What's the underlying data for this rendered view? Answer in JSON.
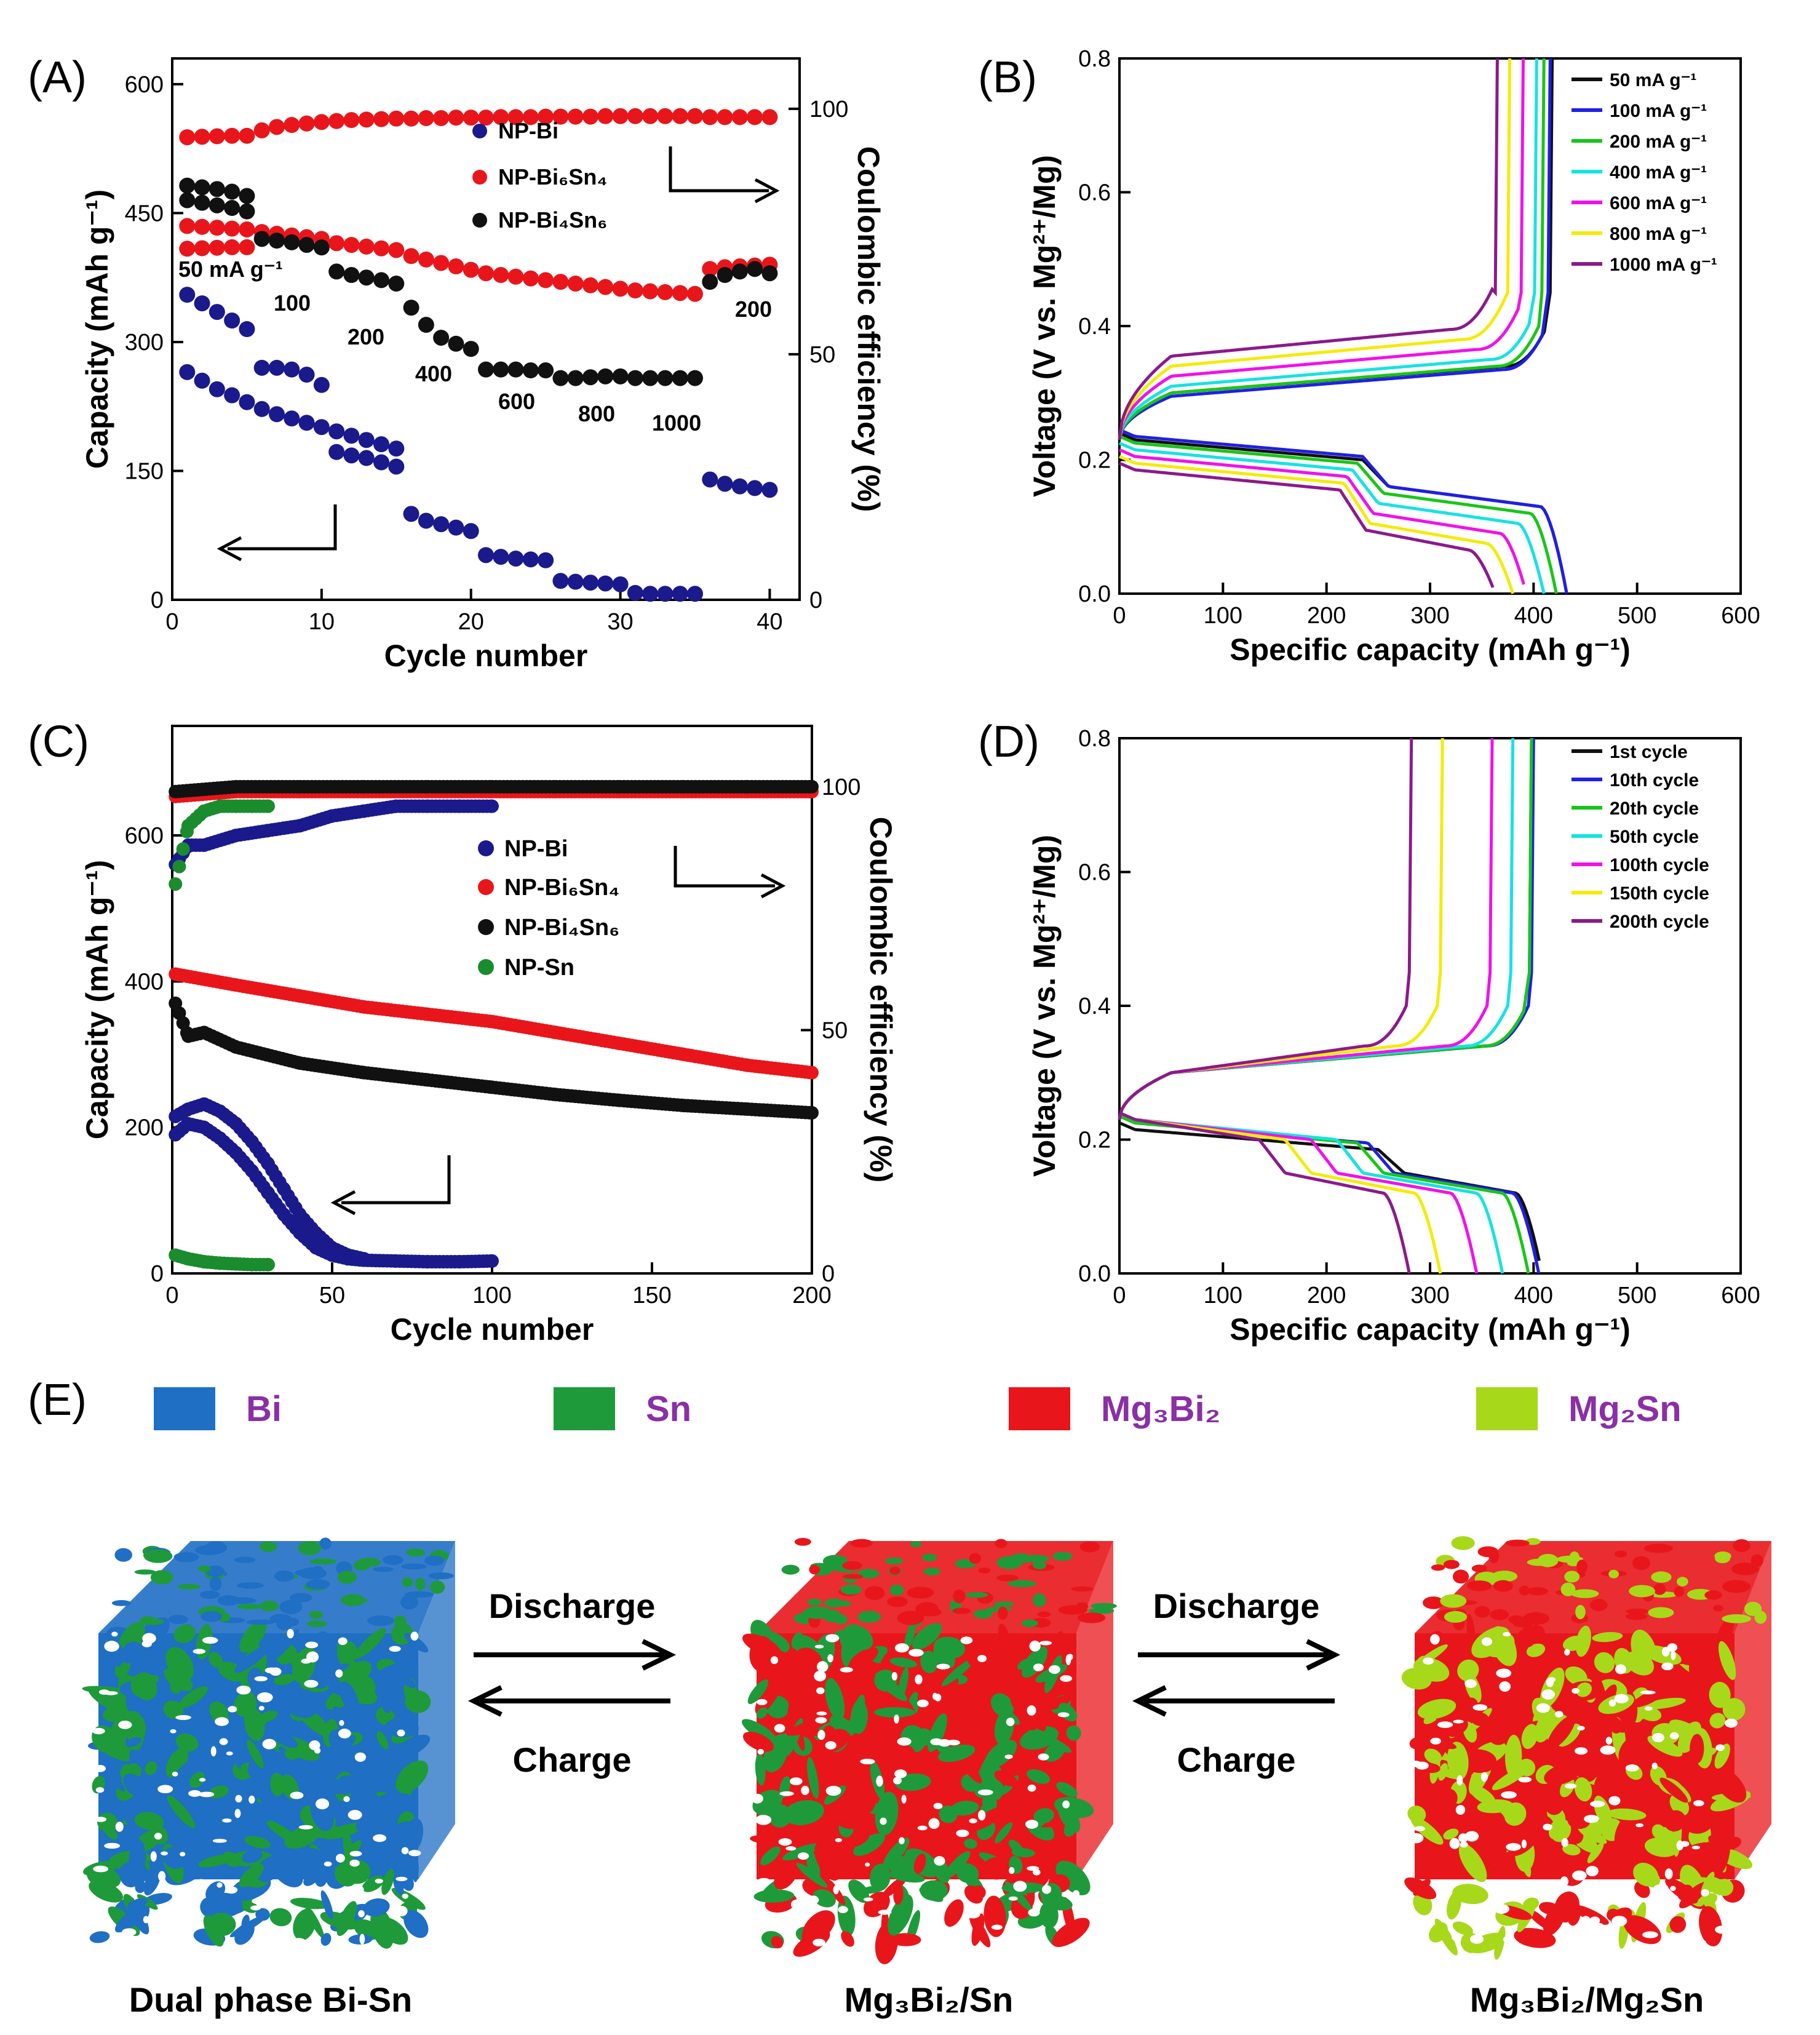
{
  "panels": {
    "A": "(A)",
    "B": "(B)",
    "C": "(C)",
    "D": "(D)",
    "E": "(E)"
  },
  "chart_data": [
    {
      "id": "A",
      "type": "scatter",
      "xlabel": "Cycle number",
      "ylabel": "Capacity (mAh g⁻¹)",
      "y2label": "Coulombic efficiency (%)",
      "xlim": [
        0,
        42
      ],
      "ylim": [
        0,
        630
      ],
      "y2lim": [
        0,
        110.25
      ],
      "xticks": [
        0,
        10,
        20,
        30,
        40
      ],
      "yticks": [
        0,
        150,
        300,
        450,
        600
      ],
      "y2ticks": [
        0,
        50,
        100
      ],
      "legend": [
        "NP-Bi",
        "NP-Bi₆Sn₄",
        "NP-Bi₄Sn₆"
      ],
      "rate_labels": [
        "50 mA g⁻¹",
        "100",
        "200",
        "400",
        "600",
        "800",
        "1000",
        "200"
      ],
      "series": [
        {
          "name": "NP-Bi",
          "color": "#1a1a8c",
          "axis": "left",
          "x": [
            1,
            2,
            3,
            4,
            5,
            6,
            7,
            8,
            9,
            10,
            11,
            12,
            13,
            14,
            15,
            16,
            17,
            18,
            19,
            20,
            21,
            22,
            23,
            24,
            25,
            26,
            27,
            28,
            29,
            30,
            31,
            32,
            33,
            34,
            35,
            36,
            37,
            38,
            39,
            40
          ],
          "y": [
            355,
            345,
            335,
            325,
            315,
            270,
            270,
            268,
            262,
            250,
            172,
            168,
            165,
            160,
            155,
            100,
            92,
            88,
            84,
            80,
            52,
            50,
            48,
            47,
            46,
            22,
            21,
            20,
            19,
            18,
            8,
            7,
            7,
            7,
            7,
            140,
            135,
            132,
            130,
            128
          ]
        },
        {
          "name": "NP-Bi",
          "color": "#1a1a8c",
          "axis": "left",
          "x": [
            1,
            2,
            3,
            4,
            5,
            6,
            7,
            8,
            9,
            10,
            11,
            12,
            13,
            14,
            15
          ],
          "y": [
            265,
            255,
            245,
            238,
            230,
            222,
            216,
            211,
            206,
            201,
            196,
            191,
            186,
            181,
            176
          ]
        },
        {
          "name": "NP-Bi₆Sn₄",
          "color": "#e8161b",
          "axis": "left",
          "x": [
            1,
            2,
            3,
            4,
            5,
            6,
            7,
            8,
            9,
            10,
            11,
            12,
            13,
            14,
            15,
            16,
            17,
            18,
            19,
            20,
            21,
            22,
            23,
            24,
            25,
            26,
            27,
            28,
            29,
            30,
            31,
            32,
            33,
            34,
            35,
            36,
            37,
            38,
            39,
            40
          ],
          "y": [
            435,
            434,
            433,
            432,
            431,
            428,
            426,
            424,
            422,
            420,
            415,
            413,
            411,
            409,
            407,
            400,
            396,
            392,
            388,
            384,
            380,
            378,
            376,
            374,
            372,
            370,
            368,
            366,
            364,
            362,
            360,
            359,
            358,
            357,
            356,
            385,
            387,
            388,
            389,
            390
          ]
        },
        {
          "name": "NP-Bi₆Sn₄ (CE)",
          "color": "#e8161b",
          "axis": "right",
          "x": [
            1,
            2,
            3,
            4,
            5,
            6,
            7,
            8,
            9,
            10,
            11,
            12,
            13,
            14,
            15,
            16,
            17,
            18,
            19,
            20,
            21,
            22,
            23,
            24,
            25,
            26,
            27,
            28,
            29,
            30,
            31,
            32,
            33,
            34,
            35,
            36,
            37,
            38,
            39,
            40
          ],
          "y": [
            71.5,
            71.6,
            71.7,
            71.8,
            71.8,
            95.6,
            96.3,
            96.7,
            97,
            97.3,
            97.5,
            97.7,
            97.8,
            97.9,
            98,
            98,
            98.1,
            98.1,
            98.2,
            98.2,
            98.2,
            98.3,
            98.3,
            98.3,
            98.4,
            98.4,
            98.4,
            98.4,
            98.5,
            98.5,
            98.5,
            98.5,
            98.5,
            98.5,
            98.5,
            98.3,
            98.3,
            98.3,
            98.3,
            98.3
          ]
        },
        {
          "name": "NP-Bi₆Sn₄ (CE low)",
          "color": "#e8161b",
          "axis": "right",
          "x": [
            1,
            2,
            3,
            4,
            5
          ],
          "y": [
            94.2,
            94.3,
            94.4,
            94.5,
            94.5
          ]
        },
        {
          "name": "NP-Bi₄Sn₆",
          "color": "#111111",
          "axis": "left",
          "x": [
            1,
            2,
            3,
            4,
            5,
            6,
            7,
            8,
            9,
            10,
            11,
            12,
            13,
            14,
            15,
            16,
            17,
            18,
            19,
            20,
            21,
            22,
            23,
            24,
            25,
            26,
            27,
            28,
            29,
            30,
            31,
            32,
            33,
            34,
            35,
            36,
            37,
            38,
            39,
            40
          ],
          "y": [
            482,
            480,
            478,
            475,
            470,
            420,
            418,
            416,
            413,
            410,
            382,
            378,
            375,
            372,
            368,
            340,
            320,
            305,
            298,
            292,
            268,
            268,
            268,
            267,
            267,
            258,
            258,
            259,
            260,
            260,
            258,
            258,
            258,
            258,
            258,
            370,
            378,
            382,
            385,
            380
          ]
        },
        {
          "name": "NP-Bi₄Sn₆",
          "color": "#111111",
          "axis": "left",
          "x": [
            1,
            2,
            3,
            4,
            5
          ],
          "y": [
            465,
            462,
            459,
            456,
            452
          ]
        }
      ]
    },
    {
      "id": "B",
      "type": "line",
      "xlabel": "Specific capacity (mAh g⁻¹)",
      "ylabel": "Voltage (V vs. Mg²⁺/Mg)",
      "xlim": [
        0,
        600
      ],
      "ylim": [
        0,
        0.8
      ],
      "xticks": [
        0,
        100,
        200,
        300,
        400,
        500,
        600
      ],
      "yticks": [
        0.0,
        0.2,
        0.4,
        0.6,
        0.8
      ],
      "legend": [
        "50    mA g⁻¹",
        "100   mA g⁻¹",
        "200   mA g⁻¹",
        "400   mA g⁻¹",
        "600   mA g⁻¹",
        "800   mA g⁻¹",
        "1000 mA g⁻¹"
      ],
      "series": [
        {
          "name": "50 mA g⁻¹",
          "color": "#111111",
          "Qd": 432,
          "Qc": 413,
          "plat_d": [
            0.24,
            0.16
          ],
          "plat_c": 0.32,
          "step": 250
        },
        {
          "name": "100 mA g⁻¹",
          "color": "#1f1fe6",
          "Qd": 432,
          "Qc": 411,
          "plat_d": [
            0.245,
            0.16
          ],
          "plat_c": 0.315,
          "step": 250
        },
        {
          "name": "200 mA g⁻¹",
          "color": "#18c618",
          "Qd": 422,
          "Qc": 405,
          "plat_d": [
            0.235,
            0.15
          ],
          "plat_c": 0.32,
          "step": 245
        },
        {
          "name": "400 mA g⁻¹",
          "color": "#17e2e2",
          "Qd": 410,
          "Qc": 398,
          "plat_d": [
            0.225,
            0.135
          ],
          "plat_c": 0.33,
          "step": 240
        },
        {
          "name": "600 mA g⁻¹",
          "color": "#f012e8",
          "Qd": 393,
          "Qc": 385,
          "plat_d": [
            0.215,
            0.12
          ],
          "plat_c": 0.345,
          "step": 235
        },
        {
          "name": "800 mA g⁻¹",
          "color": "#f2ec0a",
          "Qd": 380,
          "Qc": 372,
          "plat_d": [
            0.205,
            0.105
          ],
          "plat_c": 0.36,
          "step": 232
        },
        {
          "name": "1000 mA g⁻¹",
          "color": "#8b1a8b",
          "Qd": 363,
          "Qc": 360,
          "plat_d": [
            0.195,
            0.095
          ],
          "plat_c": 0.375,
          "step": 228
        }
      ]
    },
    {
      "id": "C",
      "type": "scatter",
      "xlabel": "Cycle number",
      "ylabel": "Capacity (mAh g⁻¹)",
      "y2label": "Coulombic efficiency (%)",
      "xlim": [
        0,
        200
      ],
      "ylim": [
        0,
        750
      ],
      "y2lim": [
        0,
        112.5
      ],
      "xticks": [
        0,
        50,
        100,
        150,
        200
      ],
      "yticks": [
        0,
        200,
        400,
        600
      ],
      "y2ticks": [
        0,
        50,
        100
      ],
      "legend": [
        "NP-Bi",
        "NP-Bi₆Sn₄",
        "NP-Bi₄Sn₆",
        "NP-Sn"
      ],
      "series": [
        {
          "name": "NP-Bi",
          "color": "#1a1a8c",
          "axis": "left",
          "x": [
            1,
            5,
            10,
            15,
            20,
            25,
            30,
            35,
            40,
            45,
            50,
            55,
            60,
            70,
            80,
            90,
            100
          ],
          "y": [
            190,
            205,
            200,
            185,
            165,
            140,
            110,
            80,
            55,
            35,
            25,
            20,
            18,
            17,
            16,
            16,
            17
          ]
        },
        {
          "name": "NP-Bi",
          "color": "#1a1a8c",
          "axis": "left",
          "x": [
            1,
            5,
            10,
            15,
            20,
            25,
            30,
            35,
            40,
            45,
            50,
            55,
            60
          ],
          "y": [
            215,
            225,
            232,
            222,
            205,
            180,
            150,
            115,
            80,
            55,
            35,
            25,
            20
          ]
        },
        {
          "name": "NP-Bi₆Sn₄",
          "color": "#e8161b",
          "axis": "left",
          "x": [
            1,
            20,
            40,
            60,
            80,
            100,
            120,
            140,
            160,
            180,
            200
          ],
          "y": [
            410,
            395,
            380,
            365,
            355,
            345,
            330,
            315,
            300,
            285,
            275
          ]
        },
        {
          "name": "NP-Bi₄Sn₆",
          "color": "#111111",
          "axis": "left",
          "x": [
            1,
            5,
            10,
            20,
            40,
            60,
            80,
            100,
            120,
            140,
            160,
            180,
            200
          ],
          "y": [
            370,
            325,
            330,
            310,
            288,
            275,
            265,
            255,
            245,
            237,
            230,
            225,
            220
          ]
        },
        {
          "name": "NP-Sn",
          "color": "#1a8c2e",
          "axis": "left",
          "x": [
            1,
            5,
            10,
            15,
            20,
            25,
            30
          ],
          "y": [
            25,
            20,
            16,
            14,
            13,
            12,
            12
          ]
        },
        {
          "name": "NP-Bi (CE)",
          "color": "#1a1a8c",
          "axis": "right",
          "x": [
            1,
            5,
            10,
            20,
            30,
            40,
            50,
            60,
            70,
            80,
            90,
            100
          ],
          "y": [
            84,
            88,
            88,
            90,
            91,
            92,
            94,
            95,
            96,
            96,
            96,
            96
          ]
        },
        {
          "name": "NP-Bi₆Sn₄ (CE)",
          "color": "#e8161b",
          "axis": "right",
          "x": [
            1,
            20,
            40,
            60,
            80,
            100,
            120,
            140,
            160,
            180,
            200
          ],
          "y": [
            98,
            99,
            99,
            99,
            99,
            99,
            99,
            99,
            99,
            99,
            99
          ]
        },
        {
          "name": "NP-Bi₄Sn₆ (CE)",
          "color": "#111111",
          "axis": "right",
          "x": [
            1,
            20,
            40,
            60,
            80,
            100,
            120,
            140,
            160,
            180,
            200
          ],
          "y": [
            99,
            100,
            100,
            100,
            100,
            100,
            100,
            100,
            100,
            100,
            100
          ]
        },
        {
          "name": "NP-Sn (CE)",
          "color": "#1a8c2e",
          "axis": "right",
          "x": [
            1,
            5,
            10,
            15,
            20,
            25,
            30
          ],
          "y": [
            80,
            92,
            95,
            96,
            96,
            96,
            96
          ]
        }
      ]
    },
    {
      "id": "D",
      "type": "line",
      "xlabel": "Specific capacity (mAh g⁻¹)",
      "ylabel": "Voltage (V vs. Mg²⁺/Mg)",
      "xlim": [
        0,
        600
      ],
      "ylim": [
        0,
        0.8
      ],
      "xticks": [
        0,
        100,
        200,
        300,
        400,
        500,
        600
      ],
      "yticks": [
        0.0,
        0.2,
        0.4,
        0.6,
        0.8
      ],
      "legend": [
        "1st    cycle",
        "10th   cycle",
        "20th   cycle",
        "50th   cycle",
        "100th cycle",
        "150th cycle",
        "200th cycle"
      ],
      "series": [
        {
          "name": "1st cycle",
          "color": "#111111",
          "Qd": 408,
          "Qc": 393,
          "plat_d": [
            0.225,
            0.15
          ],
          "plat_c": 0.32,
          "step": 265
        },
        {
          "name": "10th cycle",
          "color": "#1f1fe6",
          "Qd": 405,
          "Qc": 395,
          "plat_d": [
            0.235,
            0.15
          ],
          "plat_c": 0.32,
          "step": 255
        },
        {
          "name": "20th cycle",
          "color": "#18c618",
          "Qd": 395,
          "Qc": 393,
          "plat_d": [
            0.235,
            0.15
          ],
          "plat_c": 0.32,
          "step": 245
        },
        {
          "name": "50th cycle",
          "color": "#17e2e2",
          "Qd": 370,
          "Qc": 375,
          "plat_d": [
            0.24,
            0.15
          ],
          "plat_c": 0.32,
          "step": 225
        },
        {
          "name": "100th cycle",
          "color": "#f012e8",
          "Qd": 345,
          "Qc": 355,
          "plat_d": [
            0.24,
            0.15
          ],
          "plat_c": 0.32,
          "step": 200
        },
        {
          "name": "150th cycle",
          "color": "#f2ec0a",
          "Qd": 310,
          "Qc": 307,
          "plat_d": [
            0.24,
            0.15
          ],
          "plat_c": 0.32,
          "step": 175
        },
        {
          "name": "200th cycle",
          "color": "#8b1a8b",
          "Qd": 280,
          "Qc": 277,
          "plat_d": [
            0.24,
            0.15
          ],
          "plat_c": 0.32,
          "step": 150
        }
      ]
    }
  ],
  "schematic": {
    "legend": [
      {
        "label": "Bi",
        "color": "#1f6fc4"
      },
      {
        "label": "Sn",
        "color": "#1e9a3a"
      },
      {
        "label": "Mg₃Bi₂",
        "color": "#e8161b"
      },
      {
        "label": "Mg₂Sn",
        "color": "#a8d81a"
      }
    ],
    "cubes": [
      {
        "label": "Dual phase Bi-Sn",
        "c1": "#1f6fc4",
        "c2": "#1e9a3a"
      },
      {
        "label": "Mg₃Bi₂/Sn",
        "c1": "#e8161b",
        "c2": "#1e9a3a"
      },
      {
        "label": "Mg₃Bi₂/Mg₂Sn",
        "c1": "#e8161b",
        "c2": "#a8d81a"
      }
    ],
    "arrows": [
      {
        "top": "Discharge",
        "bottom": "Charge"
      },
      {
        "top": "Discharge",
        "bottom": "Charge"
      }
    ]
  }
}
